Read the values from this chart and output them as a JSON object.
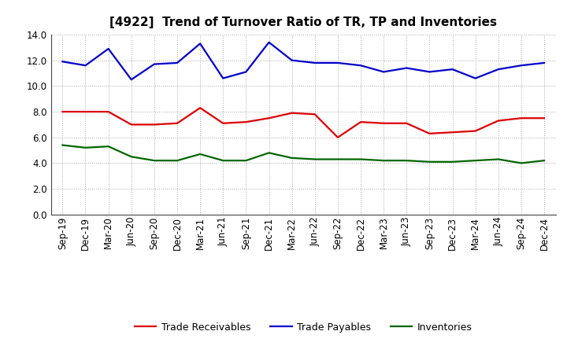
{
  "title": "[4922]  Trend of Turnover Ratio of TR, TP and Inventories",
  "labels": [
    "Sep-19",
    "Dec-19",
    "Mar-20",
    "Jun-20",
    "Sep-20",
    "Dec-20",
    "Mar-21",
    "Jun-21",
    "Sep-21",
    "Dec-21",
    "Mar-22",
    "Jun-22",
    "Sep-22",
    "Dec-22",
    "Mar-23",
    "Jun-23",
    "Sep-23",
    "Dec-23",
    "Mar-24",
    "Jun-24",
    "Sep-24",
    "Dec-24"
  ],
  "trade_receivables": [
    8.0,
    8.0,
    8.0,
    7.0,
    7.0,
    7.1,
    8.3,
    7.1,
    7.2,
    7.5,
    7.9,
    7.8,
    6.0,
    7.2,
    7.1,
    7.1,
    6.3,
    6.4,
    6.5,
    7.3,
    7.5,
    7.5
  ],
  "trade_payables": [
    11.9,
    11.6,
    12.9,
    10.5,
    11.7,
    11.8,
    13.3,
    10.6,
    11.1,
    13.4,
    12.0,
    11.8,
    11.8,
    11.6,
    11.1,
    11.4,
    11.1,
    11.3,
    10.6,
    11.3,
    11.6,
    11.8
  ],
  "inventories": [
    5.4,
    5.2,
    5.3,
    4.5,
    4.2,
    4.2,
    4.7,
    4.2,
    4.2,
    4.8,
    4.4,
    4.3,
    4.3,
    4.3,
    4.2,
    4.2,
    4.1,
    4.1,
    4.2,
    4.3,
    4.0,
    4.2
  ],
  "tr_color": "#dd0000",
  "tp_color": "#0000cc",
  "inv_color": "#006600",
  "ylim": [
    0,
    14.0
  ],
  "yticks": [
    0.0,
    2.0,
    4.0,
    6.0,
    8.0,
    10.0,
    12.0,
    14.0
  ],
  "line_width": 1.6,
  "legend_labels": [
    "Trade Receivables",
    "Trade Payables",
    "Inventories"
  ],
  "bg_color": "#ffffff",
  "plot_bg_color": "#ffffff",
  "title_fontsize": 11,
  "tick_fontsize": 8.5,
  "ytick_fontsize": 8.5
}
